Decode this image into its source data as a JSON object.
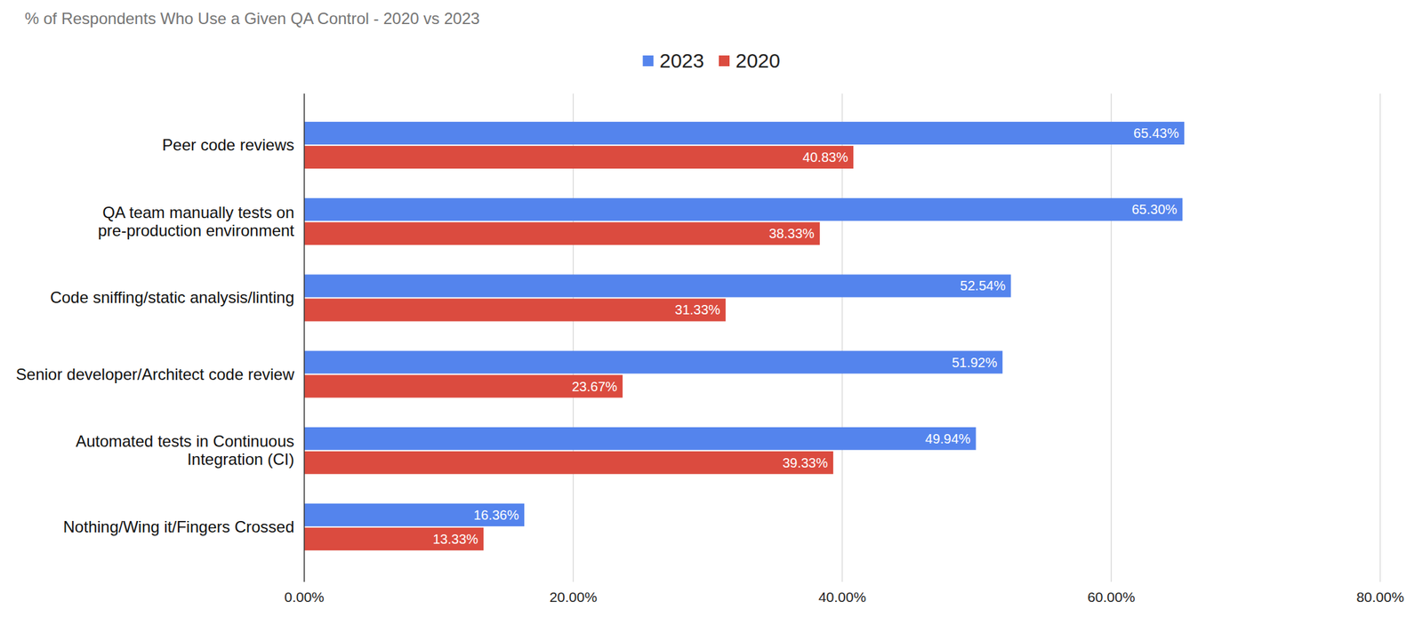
{
  "chart_data": {
    "type": "bar",
    "orientation": "horizontal",
    "title": "% of Respondents Who Use a Given QA Control - 2020 vs 2023",
    "categories": [
      "Peer code reviews",
      "QA team manually tests on pre-production environment",
      "Code sniffing/static analysis/linting",
      "Senior developer/Architect code review",
      "Automated tests in Continuous Integration (CI)",
      "Nothing/Wing it/Fingers Crossed"
    ],
    "series": [
      {
        "name": "2023",
        "color": "#5484ed",
        "values": [
          65.43,
          65.3,
          52.54,
          51.92,
          49.94,
          16.36
        ],
        "value_labels": [
          "65.43%",
          "65.30%",
          "52.54%",
          "51.92%",
          "49.94%",
          "16.36%"
        ]
      },
      {
        "name": "2020",
        "color": "#db4b3f",
        "values": [
          40.83,
          38.33,
          31.33,
          23.67,
          39.33,
          13.33
        ],
        "value_labels": [
          "40.83%",
          "38.33%",
          "31.33%",
          "23.67%",
          "39.33%",
          "13.33%"
        ]
      }
    ],
    "xlim": [
      0,
      80
    ],
    "xticks": [
      {
        "value": 0,
        "label": "0.00%"
      },
      {
        "value": 20,
        "label": "20.00%"
      },
      {
        "value": 40,
        "label": "40.00%"
      },
      {
        "value": 60,
        "label": "60.00%"
      },
      {
        "value": 80,
        "label": "80.00%"
      }
    ],
    "grid": true,
    "legend": "top",
    "data_labels": true
  }
}
